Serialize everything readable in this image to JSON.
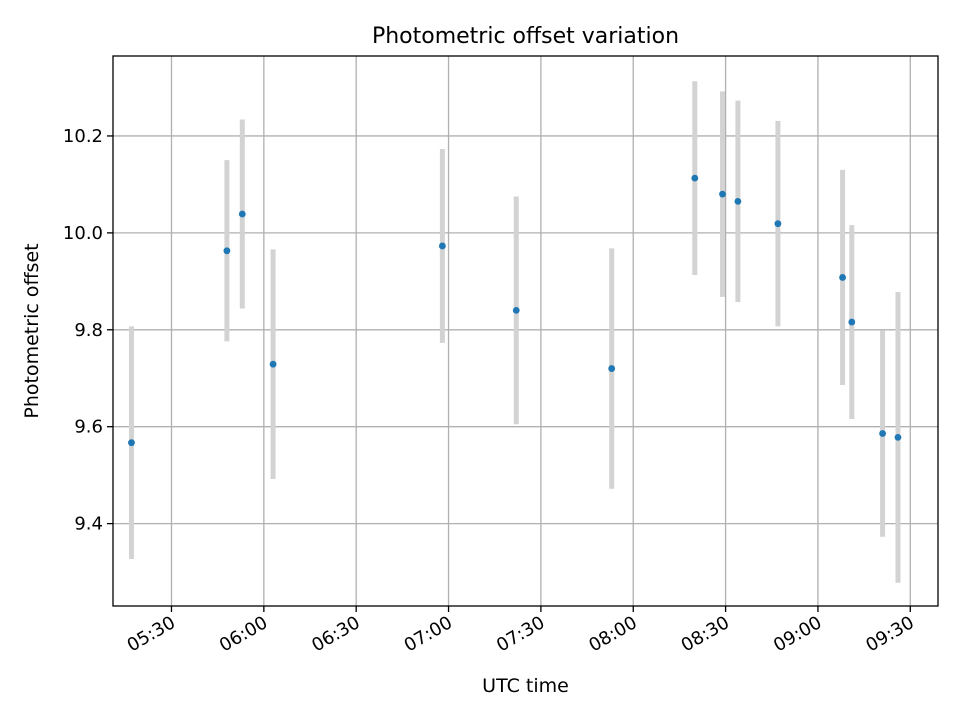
{
  "chart_data": {
    "type": "scatter",
    "title": "Photometric offset variation",
    "xlabel": "UTC time",
    "ylabel": "Photometric offset",
    "xlim": [
      "05:11",
      "09:39"
    ],
    "ylim": [
      9.23,
      10.365
    ],
    "x_ticks": [
      "05:30",
      "06:00",
      "06:30",
      "07:00",
      "07:30",
      "08:00",
      "08:30",
      "09:00",
      "09:30"
    ],
    "y_ticks": [
      9.4,
      9.6,
      9.8,
      10.0,
      10.2
    ],
    "y_tick_labels": [
      "9.4",
      "9.6",
      "9.8",
      "10.0",
      "10.2"
    ],
    "grid": true,
    "colors": {
      "points": "#1f77b4",
      "error_bars": "#d3d3d3",
      "grid": "#b0b0b0"
    },
    "points": [
      {
        "x": "05:17",
        "y": 9.567,
        "yerr": 0.24
      },
      {
        "x": "05:48",
        "y": 9.963,
        "yerr": 0.187
      },
      {
        "x": "05:53",
        "y": 10.039,
        "yerr": 0.195
      },
      {
        "x": "06:03",
        "y": 9.729,
        "yerr": 0.237
      },
      {
        "x": "06:58",
        "y": 9.973,
        "yerr": 0.2
      },
      {
        "x": "07:22",
        "y": 9.84,
        "yerr": 0.235
      },
      {
        "x": "07:53",
        "y": 9.72,
        "yerr": 0.248
      },
      {
        "x": "08:20",
        "y": 10.113,
        "yerr": 0.2
      },
      {
        "x": "08:29",
        "y": 10.08,
        "yerr": 0.212
      },
      {
        "x": "08:34",
        "y": 10.065,
        "yerr": 0.208
      },
      {
        "x": "08:47",
        "y": 10.019,
        "yerr": 0.212
      },
      {
        "x": "09:08",
        "y": 9.908,
        "yerr": 0.222
      },
      {
        "x": "09:11",
        "y": 9.816,
        "yerr": 0.2
      },
      {
        "x": "09:21",
        "y": 9.586,
        "yerr": 0.213
      },
      {
        "x": "09:26",
        "y": 9.578,
        "yerr": 0.3
      }
    ]
  }
}
